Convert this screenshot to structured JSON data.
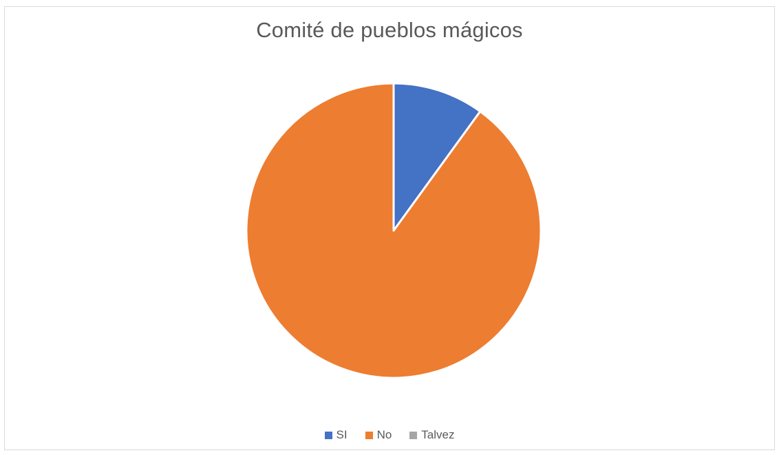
{
  "chart_data": {
    "type": "pie",
    "title": "Comité de pueblos mágicos",
    "categories": [
      "SI",
      "No",
      "Talvez"
    ],
    "values": [
      10,
      90,
      0
    ],
    "colors": [
      "#4472c4",
      "#ed7d31",
      "#a5a5a5"
    ],
    "legend_position": "bottom",
    "start_angle_deg": 0,
    "direction": "clockwise"
  }
}
